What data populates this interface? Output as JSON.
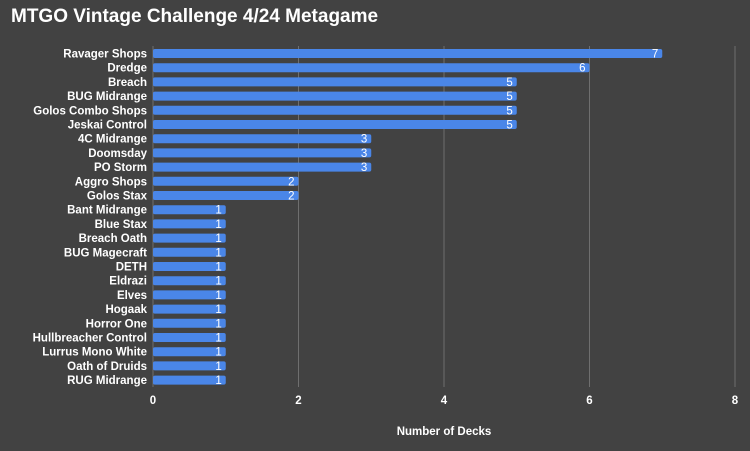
{
  "chart_data": {
    "type": "bar",
    "orientation": "horizontal",
    "title": "MTGO Vintage Challenge 4/24 Metagame",
    "xlabel": "Number of Decks",
    "ylabel": "",
    "xlim": [
      0,
      8
    ],
    "xticks": [
      0,
      2,
      4,
      6,
      8
    ],
    "grid": true,
    "legend": "none",
    "categories": [
      "Ravager Shops",
      "Dredge",
      "Breach",
      "BUG Midrange",
      "Golos Combo Shops",
      "Jeskai Control",
      "4C Midrange",
      "Doomsday",
      "PO Storm",
      "Aggro Shops",
      "Golos Stax",
      "Bant Midrange",
      "Blue Stax",
      "Breach Oath",
      "BUG Magecraft",
      "DETH",
      "Eldrazi",
      "Elves",
      "Hogaak",
      "Horror One",
      "Hullbreacher Control",
      "Lurrus Mono White",
      "Oath of Druids",
      "RUG Midrange"
    ],
    "values": [
      7,
      6,
      5,
      5,
      5,
      5,
      3,
      3,
      3,
      2,
      2,
      1,
      1,
      1,
      1,
      1,
      1,
      1,
      1,
      1,
      1,
      1,
      1,
      1
    ],
    "colors": {
      "background": "#424242",
      "bar": "#4a86e8",
      "grid": "#6f6f6f",
      "text": "#ffffff"
    }
  }
}
